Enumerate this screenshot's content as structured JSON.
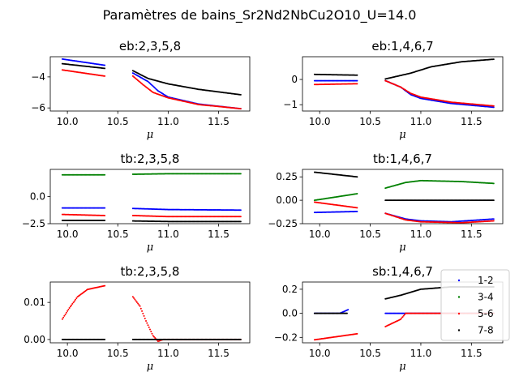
{
  "figure_title": "Paramètres de bains_Sr2Nd2NbCu2O10_U=14.0",
  "colors": {
    "1-2": "#0000ff",
    "3-4": "#008000",
    "5-6": "#ff0000",
    "7-8": "#000000"
  },
  "legend": {
    "placement": "right of bottom-right panel",
    "entries": [
      "1-2",
      "3-4",
      "5-6",
      "7-8"
    ]
  },
  "chart_data": [
    {
      "type": "scatter",
      "title": "eb:2,3,5,8",
      "xlabel": "μ",
      "ylabel": "",
      "xlim": [
        9.83,
        11.81
      ],
      "ylim": [
        -6.2,
        -2.7
      ],
      "xticks": [
        10.0,
        10.5,
        11.0,
        11.5
      ],
      "xtick_labels": [
        "10.0",
        "10.5",
        "11.0",
        "11.5"
      ],
      "yticks": [
        -6,
        -4
      ],
      "ytick_labels": [
        "−6",
        "−4"
      ],
      "series": [
        {
          "name": "1-2",
          "segments": [
            [
              [
                9.95,
                -2.85
              ],
              [
                10.37,
                -3.25
              ]
            ],
            [
              [
                10.65,
                -3.75
              ],
              [
                10.8,
                -4.3
              ],
              [
                10.9,
                -4.9
              ],
              [
                11.0,
                -5.3
              ],
              [
                11.3,
                -5.75
              ],
              [
                11.72,
                -6.05
              ]
            ]
          ]
        },
        {
          "name": "5-6",
          "segments": [
            [
              [
                9.95,
                -3.55
              ],
              [
                10.37,
                -3.95
              ]
            ],
            [
              [
                10.65,
                -3.95
              ],
              [
                10.75,
                -4.5
              ],
              [
                10.85,
                -5.0
              ],
              [
                11.0,
                -5.35
              ],
              [
                11.3,
                -5.78
              ],
              [
                11.72,
                -6.05
              ]
            ]
          ]
        },
        {
          "name": "7-8",
          "segments": [
            [
              [
                9.95,
                -3.15
              ],
              [
                10.37,
                -3.45
              ]
            ],
            [
              [
                10.65,
                -3.6
              ],
              [
                10.8,
                -4.1
              ],
              [
                11.0,
                -4.45
              ],
              [
                11.3,
                -4.8
              ],
              [
                11.72,
                -5.15
              ]
            ]
          ]
        }
      ]
    },
    {
      "type": "scatter",
      "title": "eb:1,4,6,7",
      "xlabel": "μ",
      "ylabel": "",
      "xlim": [
        9.83,
        11.81
      ],
      "ylim": [
        -1.25,
        0.9
      ],
      "xticks": [
        10.0,
        10.5,
        11.0,
        11.5
      ],
      "xtick_labels": [
        "10.0",
        "10.5",
        "11.0",
        "11.5"
      ],
      "yticks": [
        -1,
        0
      ],
      "ytick_labels": [
        "−1",
        "0"
      ],
      "series": [
        {
          "name": "1-2",
          "segments": [
            [
              [
                9.95,
                -0.05
              ],
              [
                10.37,
                -0.05
              ]
            ],
            [
              [
                10.65,
                -0.05
              ],
              [
                10.8,
                -0.3
              ],
              [
                10.9,
                -0.6
              ],
              [
                11.0,
                -0.75
              ],
              [
                11.3,
                -0.95
              ],
              [
                11.72,
                -1.1
              ]
            ]
          ]
        },
        {
          "name": "5-6",
          "segments": [
            [
              [
                9.95,
                -0.2
              ],
              [
                10.37,
                -0.17
              ]
            ],
            [
              [
                10.65,
                -0.05
              ],
              [
                10.8,
                -0.3
              ],
              [
                10.9,
                -0.55
              ],
              [
                11.0,
                -0.7
              ],
              [
                11.3,
                -0.9
              ],
              [
                11.72,
                -1.05
              ]
            ]
          ]
        },
        {
          "name": "7-8",
          "segments": [
            [
              [
                9.95,
                0.2
              ],
              [
                10.37,
                0.17
              ]
            ],
            [
              [
                10.65,
                0.02
              ],
              [
                10.9,
                0.25
              ],
              [
                11.1,
                0.5
              ],
              [
                11.4,
                0.7
              ],
              [
                11.72,
                0.8
              ]
            ]
          ]
        }
      ]
    },
    {
      "type": "scatter",
      "title": "tb:2,3,5,8",
      "xlabel": "μ",
      "ylabel": "",
      "xlim": [
        9.83,
        11.81
      ],
      "ylim": [
        -2.5,
        2.5
      ],
      "xticks": [
        10.0,
        10.5,
        11.0,
        11.5
      ],
      "xtick_labels": [
        "10.0",
        "10.5",
        "11.0",
        "11.5"
      ],
      "yticks": [
        -2.5,
        0.0
      ],
      "ytick_labels": [
        "−2.5",
        "0.0"
      ],
      "series": [
        {
          "name": "1-2",
          "segments": [
            [
              [
                9.95,
                -1.05
              ],
              [
                10.37,
                -1.05
              ]
            ],
            [
              [
                10.65,
                -1.1
              ],
              [
                11.0,
                -1.2
              ],
              [
                11.72,
                -1.25
              ]
            ]
          ]
        },
        {
          "name": "3-4",
          "segments": [
            [
              [
                9.95,
                2.0
              ],
              [
                10.37,
                2.0
              ]
            ],
            [
              [
                10.65,
                2.05
              ],
              [
                11.0,
                2.1
              ],
              [
                11.72,
                2.1
              ]
            ]
          ]
        },
        {
          "name": "5-6",
          "segments": [
            [
              [
                9.95,
                -1.65
              ],
              [
                10.37,
                -1.75
              ]
            ],
            [
              [
                10.65,
                -1.75
              ],
              [
                11.0,
                -1.85
              ],
              [
                11.72,
                -1.85
              ]
            ]
          ]
        },
        {
          "name": "7-8",
          "segments": [
            [
              [
                9.95,
                -2.2
              ],
              [
                10.37,
                -2.2
              ]
            ],
            [
              [
                10.65,
                -2.25
              ],
              [
                11.0,
                -2.3
              ],
              [
                11.72,
                -2.3
              ]
            ]
          ]
        }
      ]
    },
    {
      "type": "scatter",
      "title": "tb:1,4,6,7",
      "xlabel": "μ",
      "ylabel": "",
      "xlim": [
        9.83,
        11.81
      ],
      "ylim": [
        -0.25,
        0.33
      ],
      "xticks": [
        10.0,
        10.5,
        11.0,
        11.5
      ],
      "xtick_labels": [
        "10.0",
        "10.5",
        "11.0",
        "11.5"
      ],
      "yticks": [
        -0.25,
        0.0,
        0.25
      ],
      "ytick_labels": [
        "−0.25",
        "0.00",
        "0.25"
      ],
      "series": [
        {
          "name": "1-2",
          "segments": [
            [
              [
                9.95,
                -0.13
              ],
              [
                10.37,
                -0.12
              ]
            ],
            [
              [
                10.65,
                -0.14
              ],
              [
                10.85,
                -0.2
              ],
              [
                11.0,
                -0.22
              ],
              [
                11.3,
                -0.23
              ],
              [
                11.72,
                -0.2
              ]
            ]
          ]
        },
        {
          "name": "3-4",
          "segments": [
            [
              [
                9.95,
                0.0
              ],
              [
                10.37,
                0.07
              ]
            ],
            [
              [
                10.65,
                0.13
              ],
              [
                10.85,
                0.19
              ],
              [
                11.0,
                0.21
              ],
              [
                11.4,
                0.2
              ],
              [
                11.72,
                0.18
              ]
            ]
          ]
        },
        {
          "name": "5-6",
          "segments": [
            [
              [
                9.95,
                -0.02
              ],
              [
                10.37,
                -0.08
              ]
            ],
            [
              [
                10.65,
                -0.14
              ],
              [
                10.85,
                -0.21
              ],
              [
                11.0,
                -0.23
              ],
              [
                11.4,
                -0.24
              ],
              [
                11.72,
                -0.22
              ]
            ]
          ]
        },
        {
          "name": "7-8",
          "segments": [
            [
              [
                9.95,
                0.3
              ],
              [
                10.37,
                0.25
              ]
            ],
            [
              [
                10.65,
                0.0
              ],
              [
                11.72,
                0.0
              ]
            ]
          ]
        }
      ]
    },
    {
      "type": "scatter",
      "title": "tb:2,3,5,8",
      "xlabel": "μ",
      "ylabel": "",
      "xlim": [
        9.83,
        11.81
      ],
      "ylim": [
        -0.0009,
        0.0155
      ],
      "xticks": [
        10.0,
        10.5,
        11.0,
        11.5
      ],
      "xtick_labels": [
        "10.0",
        "10.5",
        "11.0",
        "11.5"
      ],
      "yticks": [
        0.0,
        0.01
      ],
      "ytick_labels": [
        "0.00",
        "0.01"
      ],
      "series": [
        {
          "name": "5-6",
          "segments": [
            [
              [
                9.95,
                0.0055
              ],
              [
                10.02,
                0.0085
              ],
              [
                10.1,
                0.0115
              ],
              [
                10.2,
                0.0135
              ],
              [
                10.37,
                0.0145
              ]
            ],
            [
              [
                10.65,
                0.0115
              ],
              [
                10.72,
                0.009
              ],
              [
                10.78,
                0.005
              ],
              [
                10.85,
                0.001
              ],
              [
                10.9,
                -0.0005
              ],
              [
                10.95,
                0.0
              ],
              [
                11.72,
                0.0
              ]
            ]
          ]
        },
        {
          "name": "7-8",
          "segments": [
            [
              [
                9.95,
                0.0
              ],
              [
                10.37,
                0.0
              ]
            ],
            [
              [
                10.65,
                0.0
              ],
              [
                11.72,
                0.0
              ]
            ]
          ]
        }
      ]
    },
    {
      "type": "scatter",
      "title": "sb:1,4,6,7",
      "xlabel": "μ",
      "ylabel": "",
      "xlim": [
        9.83,
        11.81
      ],
      "ylim": [
        -0.245,
        0.26
      ],
      "xticks": [
        10.0,
        10.5,
        11.0,
        11.5
      ],
      "xtick_labels": [
        "10.0",
        "10.5",
        "11.0",
        "11.5"
      ],
      "yticks": [
        -0.2,
        0.0,
        0.2
      ],
      "ytick_labels": [
        "−0.2",
        "0.0",
        "0.2"
      ],
      "series": [
        {
          "name": "1-2",
          "segments": [
            [
              [
                9.95,
                0.0
              ],
              [
                10.2,
                0.0
              ],
              [
                10.28,
                0.03
              ]
            ],
            [
              [
                10.65,
                0.0
              ],
              [
                11.72,
                0.0
              ]
            ]
          ]
        },
        {
          "name": "5-6",
          "segments": [
            [
              [
                9.95,
                -0.22
              ],
              [
                10.37,
                -0.17
              ]
            ],
            [
              [
                10.65,
                -0.11
              ],
              [
                10.8,
                -0.05
              ],
              [
                10.85,
                0.0
              ],
              [
                11.72,
                0.0
              ]
            ]
          ]
        },
        {
          "name": "7-8",
          "segments": [
            [
              [
                9.95,
                0.0
              ],
              [
                10.27,
                0.0
              ]
            ],
            [
              [
                10.65,
                0.12
              ],
              [
                10.8,
                0.15
              ],
              [
                11.0,
                0.2
              ],
              [
                11.3,
                0.22
              ],
              [
                11.72,
                0.22
              ]
            ]
          ]
        }
      ]
    }
  ]
}
